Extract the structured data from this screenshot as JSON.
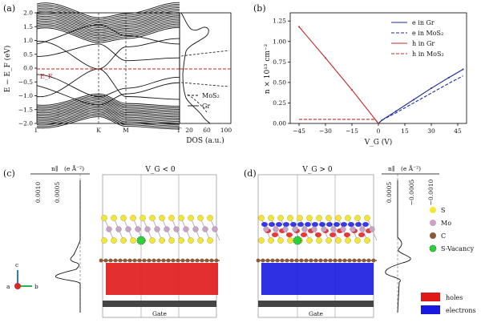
{
  "panels": {
    "a": {
      "label": "(a)",
      "ylabel": "E − E_F (eV)",
      "xticks": [
        "Γ",
        "K",
        "M",
        "Γ"
      ],
      "yticks": [
        "2.0",
        "1.5",
        "1.0",
        "0.5",
        "0.0",
        "−0.5",
        "−1.0",
        "−1.5",
        "−2.0"
      ],
      "fermi_label": "E_F",
      "dos_xlabel": "DOS (a.u.)",
      "dos_ticks": [
        "20",
        "60",
        "100"
      ],
      "dos_legend": [
        {
          "label": "MoS₂",
          "style": "dashed"
        },
        {
          "label": "Gr",
          "style": "solid"
        }
      ],
      "colors": {
        "fermi": "#cc2222",
        "bands": "#111111"
      }
    },
    "b": {
      "label": "(b)",
      "ylabel": "n × 10¹³ cm⁻²",
      "xlabel": "V_G (V)",
      "legend": [
        {
          "label": "e in Gr",
          "color": "#1a2a9c",
          "style": "solid"
        },
        {
          "label": "e in MoS₂",
          "color": "#1a2a9c",
          "style": "dashed"
        },
        {
          "label": "h in Gr",
          "color": "#c0282a",
          "style": "solid"
        },
        {
          "label": "h in MoS₂",
          "color": "#c0282a",
          "style": "dashed"
        }
      ]
    },
    "c": {
      "label": "(c)",
      "title": "V_G < 0",
      "profile_label": "n∥",
      "profile_unit": "(e Å⁻²)",
      "profile_ticks": [
        "0.0010",
        "0.0005"
      ],
      "gate_label": "Gate",
      "axes_labels": [
        "a",
        "b",
        "c"
      ]
    },
    "d": {
      "label": "(d)",
      "title": "V_G > 0",
      "profile_label": "n∥",
      "profile_unit": "(e Å⁻²)",
      "profile_ticks": [
        "0.0005",
        "−0.0005",
        "−0.0010"
      ],
      "gate_label": "Gate"
    }
  },
  "atom_legend": [
    {
      "label": "S",
      "color": "#f2e63a"
    },
    {
      "label": "Mo",
      "color": "#c9a3c4"
    },
    {
      "label": "C",
      "color": "#8a5a3a"
    },
    {
      "label": "S-Vacancy",
      "color": "#2ed03a"
    }
  ],
  "charge_legend": [
    {
      "label": "holes",
      "color": "#e01818"
    },
    {
      "label": "electrons",
      "color": "#1818e0"
    }
  ],
  "chart_data": {
    "type": "line",
    "title": "",
    "xlabel": "V_G (V)",
    "ylabel": "n × 10¹³ cm⁻²",
    "xlim": [
      -50,
      50
    ],
    "ylim": [
      0,
      1.35
    ],
    "xticks": [
      -45,
      -30,
      -15,
      0,
      15,
      30,
      45
    ],
    "yticks": [
      0.0,
      0.25,
      0.5,
      0.75,
      1.0,
      1.25
    ],
    "series": [
      {
        "name": "e in Gr",
        "x": [
          0,
          2,
          10,
          20,
          30,
          40,
          48
        ],
        "y": [
          0.0,
          0.04,
          0.15,
          0.29,
          0.43,
          0.56,
          0.66
        ]
      },
      {
        "name": "e in MoS₂",
        "x": [
          0,
          2,
          10,
          20,
          30,
          40,
          48
        ],
        "y": [
          0.0,
          0.04,
          0.13,
          0.25,
          0.37,
          0.49,
          0.58
        ]
      },
      {
        "name": "h in Gr",
        "x": [
          -45,
          -30,
          -15,
          0
        ],
        "y": [
          1.18,
          0.8,
          0.41,
          0.0
        ]
      },
      {
        "name": "h in MoS₂",
        "x": [
          -45,
          -30,
          -15,
          -2,
          0
        ],
        "y": [
          0.05,
          0.05,
          0.05,
          0.05,
          0.0
        ]
      }
    ]
  }
}
